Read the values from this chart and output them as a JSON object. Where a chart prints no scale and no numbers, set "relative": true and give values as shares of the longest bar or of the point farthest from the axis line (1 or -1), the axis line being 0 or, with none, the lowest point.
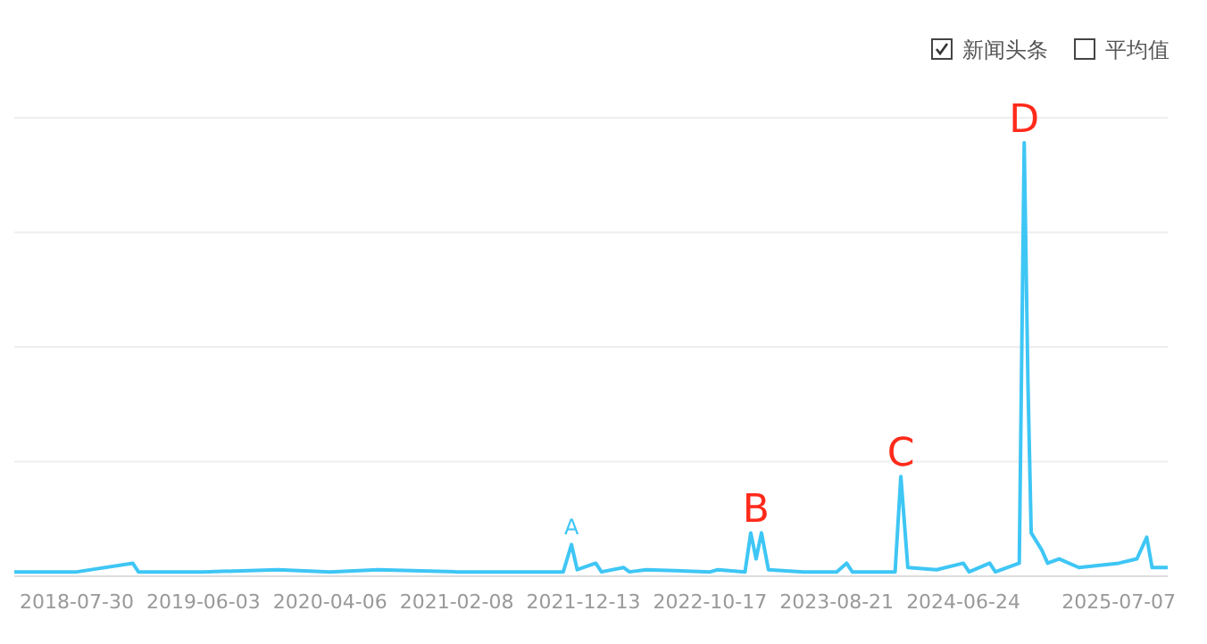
{
  "chart_data": {
    "type": "line",
    "relative": true,
    "grid": true,
    "legend": "top right",
    "marker": "none",
    "line_style": "solid",
    "x": [
      "2018-02-28",
      "2018-07-30",
      "2018-12-13",
      "2018-12-27",
      "2019-06-03",
      "2019-12-01",
      "2020-04-06",
      "2020-08-01",
      "2021-02-08",
      "2021-10-25",
      "2021-11-14",
      "2021-11-28",
      "2022-01-12",
      "2022-01-26",
      "2022-03-21",
      "2022-04-04",
      "2022-05-15",
      "2022-10-17",
      "2022-11-05",
      "2023-01-10",
      "2023-01-24",
      "2023-02-06",
      "2023-02-19",
      "2023-03-08",
      "2023-06-01",
      "2023-08-21",
      "2023-09-14",
      "2023-09-28",
      "2024-01-10",
      "2024-01-24",
      "2024-02-10",
      "2024-04-20",
      "2024-06-24",
      "2024-07-08",
      "2024-08-27",
      "2024-09-10",
      "2024-11-07",
      "2024-11-19",
      "2024-11-28",
      "2024-12-06",
      "2025-01-01",
      "2025-01-15",
      "2025-02-12",
      "2025-04-01",
      "2025-07-07",
      "2025-08-20",
      "2025-09-13",
      "2025-09-26",
      "2025-11-03"
    ],
    "xlim": [
      "2018-02-28",
      "2025-11-03"
    ],
    "xticks": [
      "2018-07-30",
      "2019-06-03",
      "2020-04-06",
      "2021-02-08",
      "2021-12-13",
      "2022-10-17",
      "2023-08-21",
      "2024-06-24",
      "2025-07-07"
    ],
    "series": [
      {
        "name": "新闻头条",
        "color": "#3ec6f5",
        "values": [
          0.01,
          0.01,
          0.03,
          0.01,
          0.01,
          0.015,
          0.01,
          0.015,
          0.01,
          0.01,
          0.073,
          0.015,
          0.03,
          0.01,
          0.02,
          0.01,
          0.015,
          0.01,
          0.015,
          0.01,
          0.1,
          0.04,
          0.1,
          0.015,
          0.01,
          0.01,
          0.03,
          0.01,
          0.01,
          0.23,
          0.02,
          0.015,
          0.03,
          0.01,
          0.03,
          0.01,
          0.03,
          1.0,
          0.45,
          0.1,
          0.06,
          0.03,
          0.04,
          0.02,
          0.03,
          0.04,
          0.09,
          0.02,
          0.02
        ]
      },
      {
        "name": "平均值",
        "values": [
          null,
          null,
          null,
          null,
          null,
          null,
          null,
          null,
          null,
          null,
          null,
          null,
          null,
          null,
          null,
          null,
          null,
          null,
          null,
          null,
          null,
          null,
          null,
          null,
          null,
          null,
          null,
          null,
          null,
          null,
          null,
          null,
          null,
          null,
          null,
          null,
          null,
          null,
          null,
          null,
          null,
          null,
          null,
          null,
          null,
          null,
          null,
          null,
          null
        ]
      }
    ],
    "annotations": [
      {
        "text": "A",
        "x": "2021-11-14",
        "y": 0.073
      },
      {
        "text": "B",
        "x": "2023-02-06",
        "y": 0.1
      },
      {
        "text": "C",
        "x": "2024-01-24",
        "y": 0.23
      },
      {
        "text": "D",
        "x": "2024-11-19",
        "y": 1.0
      }
    ]
  }
}
